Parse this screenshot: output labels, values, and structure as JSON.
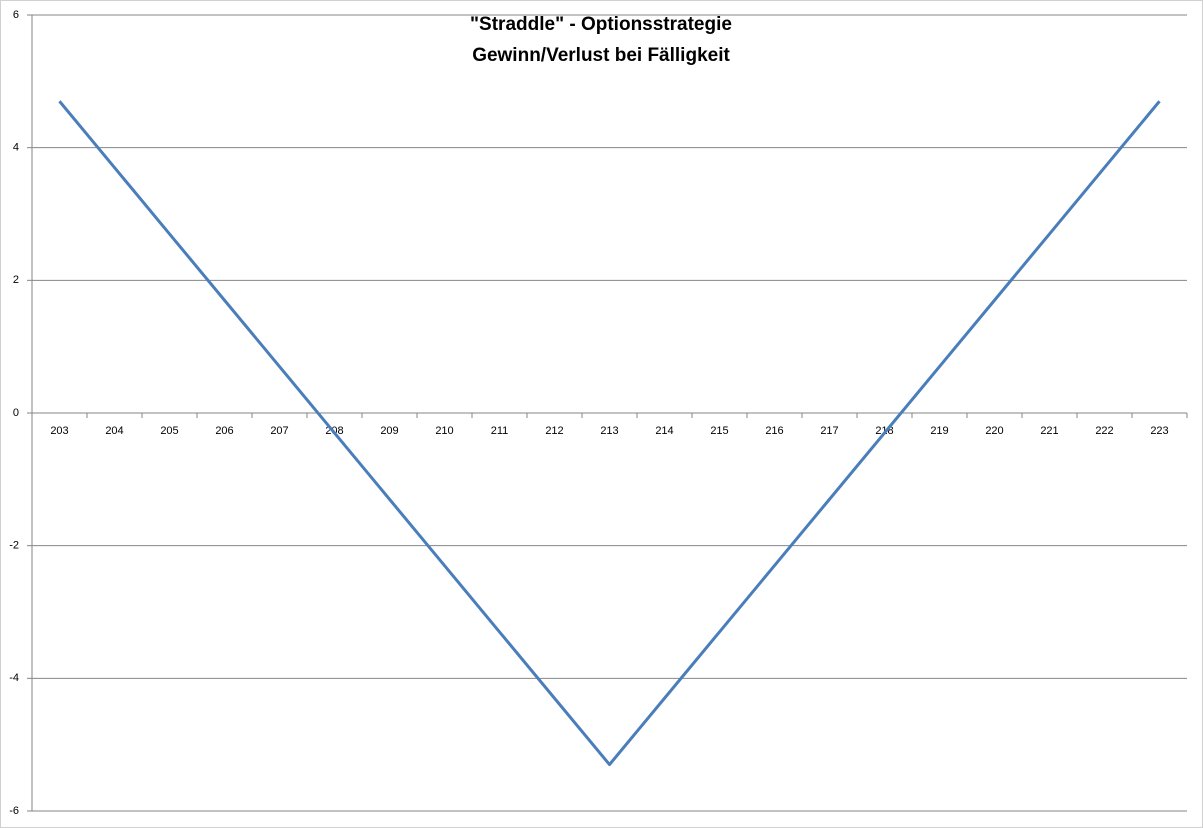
{
  "chart_data": {
    "type": "line",
    "title": [
      "\"Straddle\" - Optionsstrategie",
      "Gewinn/Verlust bei Fälligkeit"
    ],
    "categories": [
      "203",
      "204",
      "205",
      "206",
      "207",
      "208",
      "209",
      "210",
      "211",
      "212",
      "213",
      "214",
      "215",
      "216",
      "217",
      "218",
      "219",
      "220",
      "221",
      "222",
      "223"
    ],
    "series": [
      {
        "color": "#4a7ebb",
        "values": [
          4.7,
          3.7,
          2.7,
          1.7,
          0.7,
          -0.3,
          -1.3,
          -2.3,
          -3.3,
          -4.3,
          -5.3,
          -4.3,
          -3.3,
          -2.3,
          -1.3,
          -0.3,
          0.7,
          1.7,
          2.7,
          3.7,
          4.7
        ]
      }
    ],
    "ylim": [
      -6,
      6
    ],
    "yticks": [
      -6,
      -4,
      -2,
      0,
      2,
      4,
      6
    ],
    "grid": true
  }
}
